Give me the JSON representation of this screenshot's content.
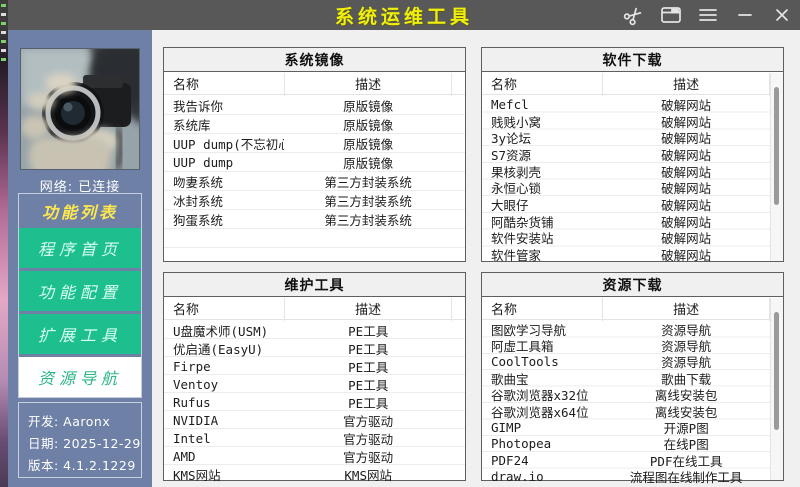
{
  "window": {
    "title": "系统运维工具"
  },
  "titlebar": {
    "icons": [
      "scissors-icon",
      "window-card-icon",
      "menu-icon",
      "minimize-icon",
      "close-icon"
    ]
  },
  "colors": {
    "titlebar_bg": "#585858",
    "title_text": "#f0ef0c",
    "sidebar_bg": "#6e80a6",
    "accent_green": "#1ebf8e",
    "selected_text": "#2bb488",
    "menu_header_yellow": "#ffe84d",
    "main_bg": "#f0f0f0"
  },
  "sidebar": {
    "network_status": "网络: 已连接",
    "menu_header": "功能列表",
    "menu_items": [
      {
        "label": "程序首页",
        "selected": false
      },
      {
        "label": "功能配置",
        "selected": false
      },
      {
        "label": "扩展工具",
        "selected": false
      },
      {
        "label": "资源导航",
        "selected": true
      }
    ],
    "footer": {
      "developer": "开发: Aaronx",
      "date": "日期: 2025-12-29",
      "version": "版本: 4.1.2.1229"
    }
  },
  "panels": [
    {
      "title": "系统镜像",
      "columns": [
        "名称",
        "描述"
      ],
      "scrollbar": false,
      "rows": [
        [
          "我告诉你",
          "原版镜像"
        ],
        [
          "系统库",
          "原版镜像"
        ],
        [
          "UUP dump(不忘初心)",
          "原版镜像"
        ],
        [
          "UUP dump",
          "原版镜像"
        ],
        [
          "吻妻系统",
          "第三方封装系统"
        ],
        [
          "冰封系统",
          "第三方封装系统"
        ],
        [
          "狗蛋系统",
          "第三方封装系统"
        ]
      ]
    },
    {
      "title": "软件下载",
      "columns": [
        "名称",
        "描述"
      ],
      "scrollbar": true,
      "rows": [
        [
          "Mefcl",
          "破解网站"
        ],
        [
          "贱贱小窝",
          "破解网站"
        ],
        [
          "3y论坛",
          "破解网站"
        ],
        [
          "S7资源",
          "破解网站"
        ],
        [
          "果核剥壳",
          "破解网站"
        ],
        [
          "永恒心锁",
          "破解网站"
        ],
        [
          "大眼仔",
          "破解网站"
        ],
        [
          "阿酷杂货铺",
          "破解网站"
        ],
        [
          "软件安装站",
          "破解网站"
        ],
        [
          "软件管家",
          "破解网站"
        ]
      ]
    },
    {
      "title": "维护工具",
      "columns": [
        "名称",
        "描述"
      ],
      "scrollbar": false,
      "rows": [
        [
          "U盘魔术师(USM)",
          "PE工具"
        ],
        [
          "优启通(EasyU)",
          "PE工具"
        ],
        [
          "Firpe",
          "PE工具"
        ],
        [
          "Ventoy",
          "PE工具"
        ],
        [
          "Rufus",
          "PE工具"
        ],
        [
          "NVIDIA",
          "官方驱动"
        ],
        [
          "Intel",
          "官方驱动"
        ],
        [
          "AMD",
          "官方驱动"
        ],
        [
          "KMS网站",
          "KMS网站"
        ]
      ]
    },
    {
      "title": "资源下载",
      "columns": [
        "名称",
        "描述"
      ],
      "scrollbar": true,
      "rows": [
        [
          "图欧学习导航",
          "资源导航"
        ],
        [
          "阿虚工具箱",
          "资源导航"
        ],
        [
          "CoolTools",
          "资源导航"
        ],
        [
          "歌曲宝",
          "歌曲下载"
        ],
        [
          "谷歌浏览器x32位",
          "离线安装包"
        ],
        [
          "谷歌浏览器x64位",
          "离线安装包"
        ],
        [
          "GIMP",
          "开源P图"
        ],
        [
          "Photopea",
          "在线P图"
        ],
        [
          "PDF24",
          "PDF在线工具"
        ],
        [
          "draw.io",
          "流程图在线制作工具"
        ]
      ]
    }
  ]
}
